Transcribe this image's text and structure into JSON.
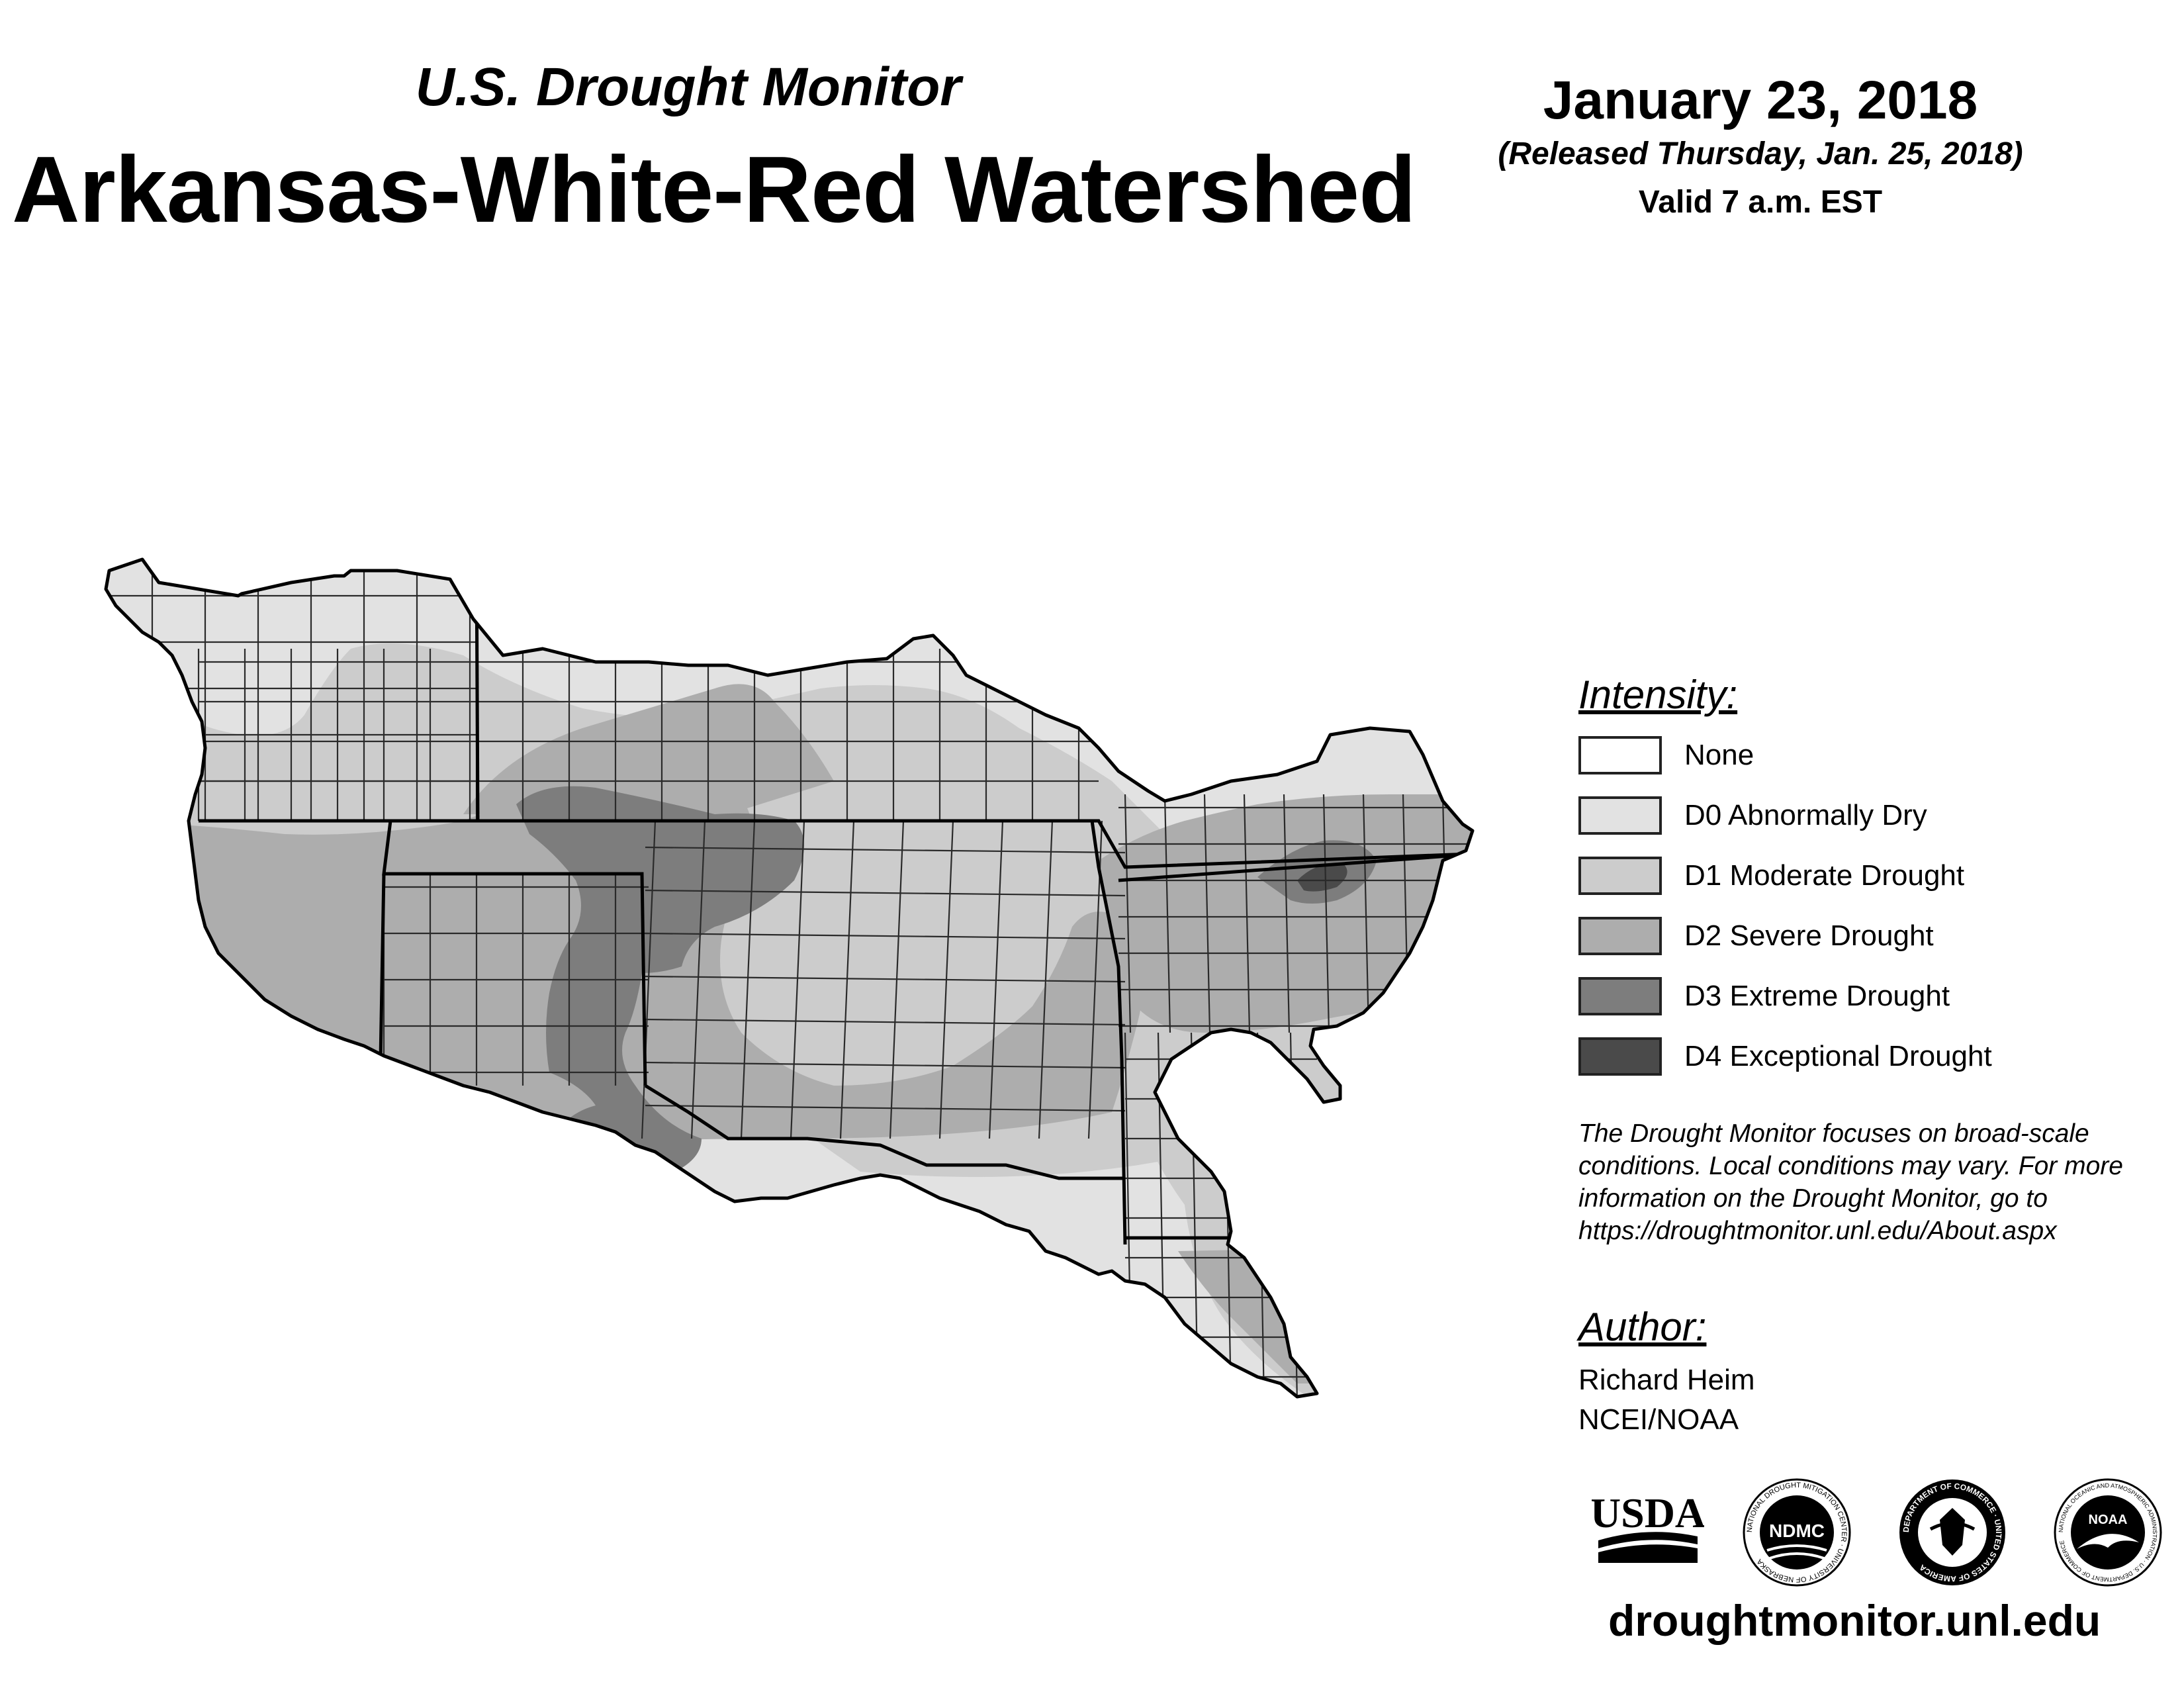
{
  "header": {
    "supertitle": "U.S. Drought Monitor",
    "title": "Arkansas-White-Red Watershed",
    "date": "January 23, 2018",
    "released": "(Released Thursday, Jan. 25, 2018)",
    "valid": "Valid 7 a.m. EST"
  },
  "legend": {
    "heading": "Intensity:",
    "items": [
      {
        "label": "None",
        "color": "#ffffff"
      },
      {
        "label": "D0 Abnormally Dry",
        "color": "#e2e2e2"
      },
      {
        "label": "D1 Moderate Drought",
        "color": "#cccccc"
      },
      {
        "label": "D2 Severe Drought",
        "color": "#adadad"
      },
      {
        "label": "D3 Extreme Drought",
        "color": "#7d7d7d"
      },
      {
        "label": "D4 Exceptional Drought",
        "color": "#4a4a4a"
      }
    ]
  },
  "disclaimer": {
    "lines": [
      "The Drought Monitor focuses on broad-scale",
      "conditions. Local conditions may vary. For more",
      "information on the Drought Monitor, go to",
      "https://droughtmonitor.unl.edu/About.aspx"
    ]
  },
  "author": {
    "heading": "Author:",
    "name": "Richard Heim",
    "org": "NCEI/NOAA"
  },
  "logos": {
    "usda": "USDA",
    "ndmc": "NDMC",
    "ndmc_ring": "NATIONAL DROUGHT MITIGATION CENTER · UNIVERSITY OF NEBRASKA",
    "commerce_ring": "DEPARTMENT OF COMMERCE · UNITED STATES OF AMERICA",
    "noaa": "NOAA",
    "noaa_ring": "NATIONAL OCEANIC AND ATMOSPHERIC ADMINISTRATION · U.S. DEPARTMENT OF COMMERCE"
  },
  "website": "droughtmonitor.unl.edu",
  "map": {
    "icons": [
      "drought-region",
      "state-boundary",
      "county-grid",
      "watershed-outline"
    ]
  }
}
